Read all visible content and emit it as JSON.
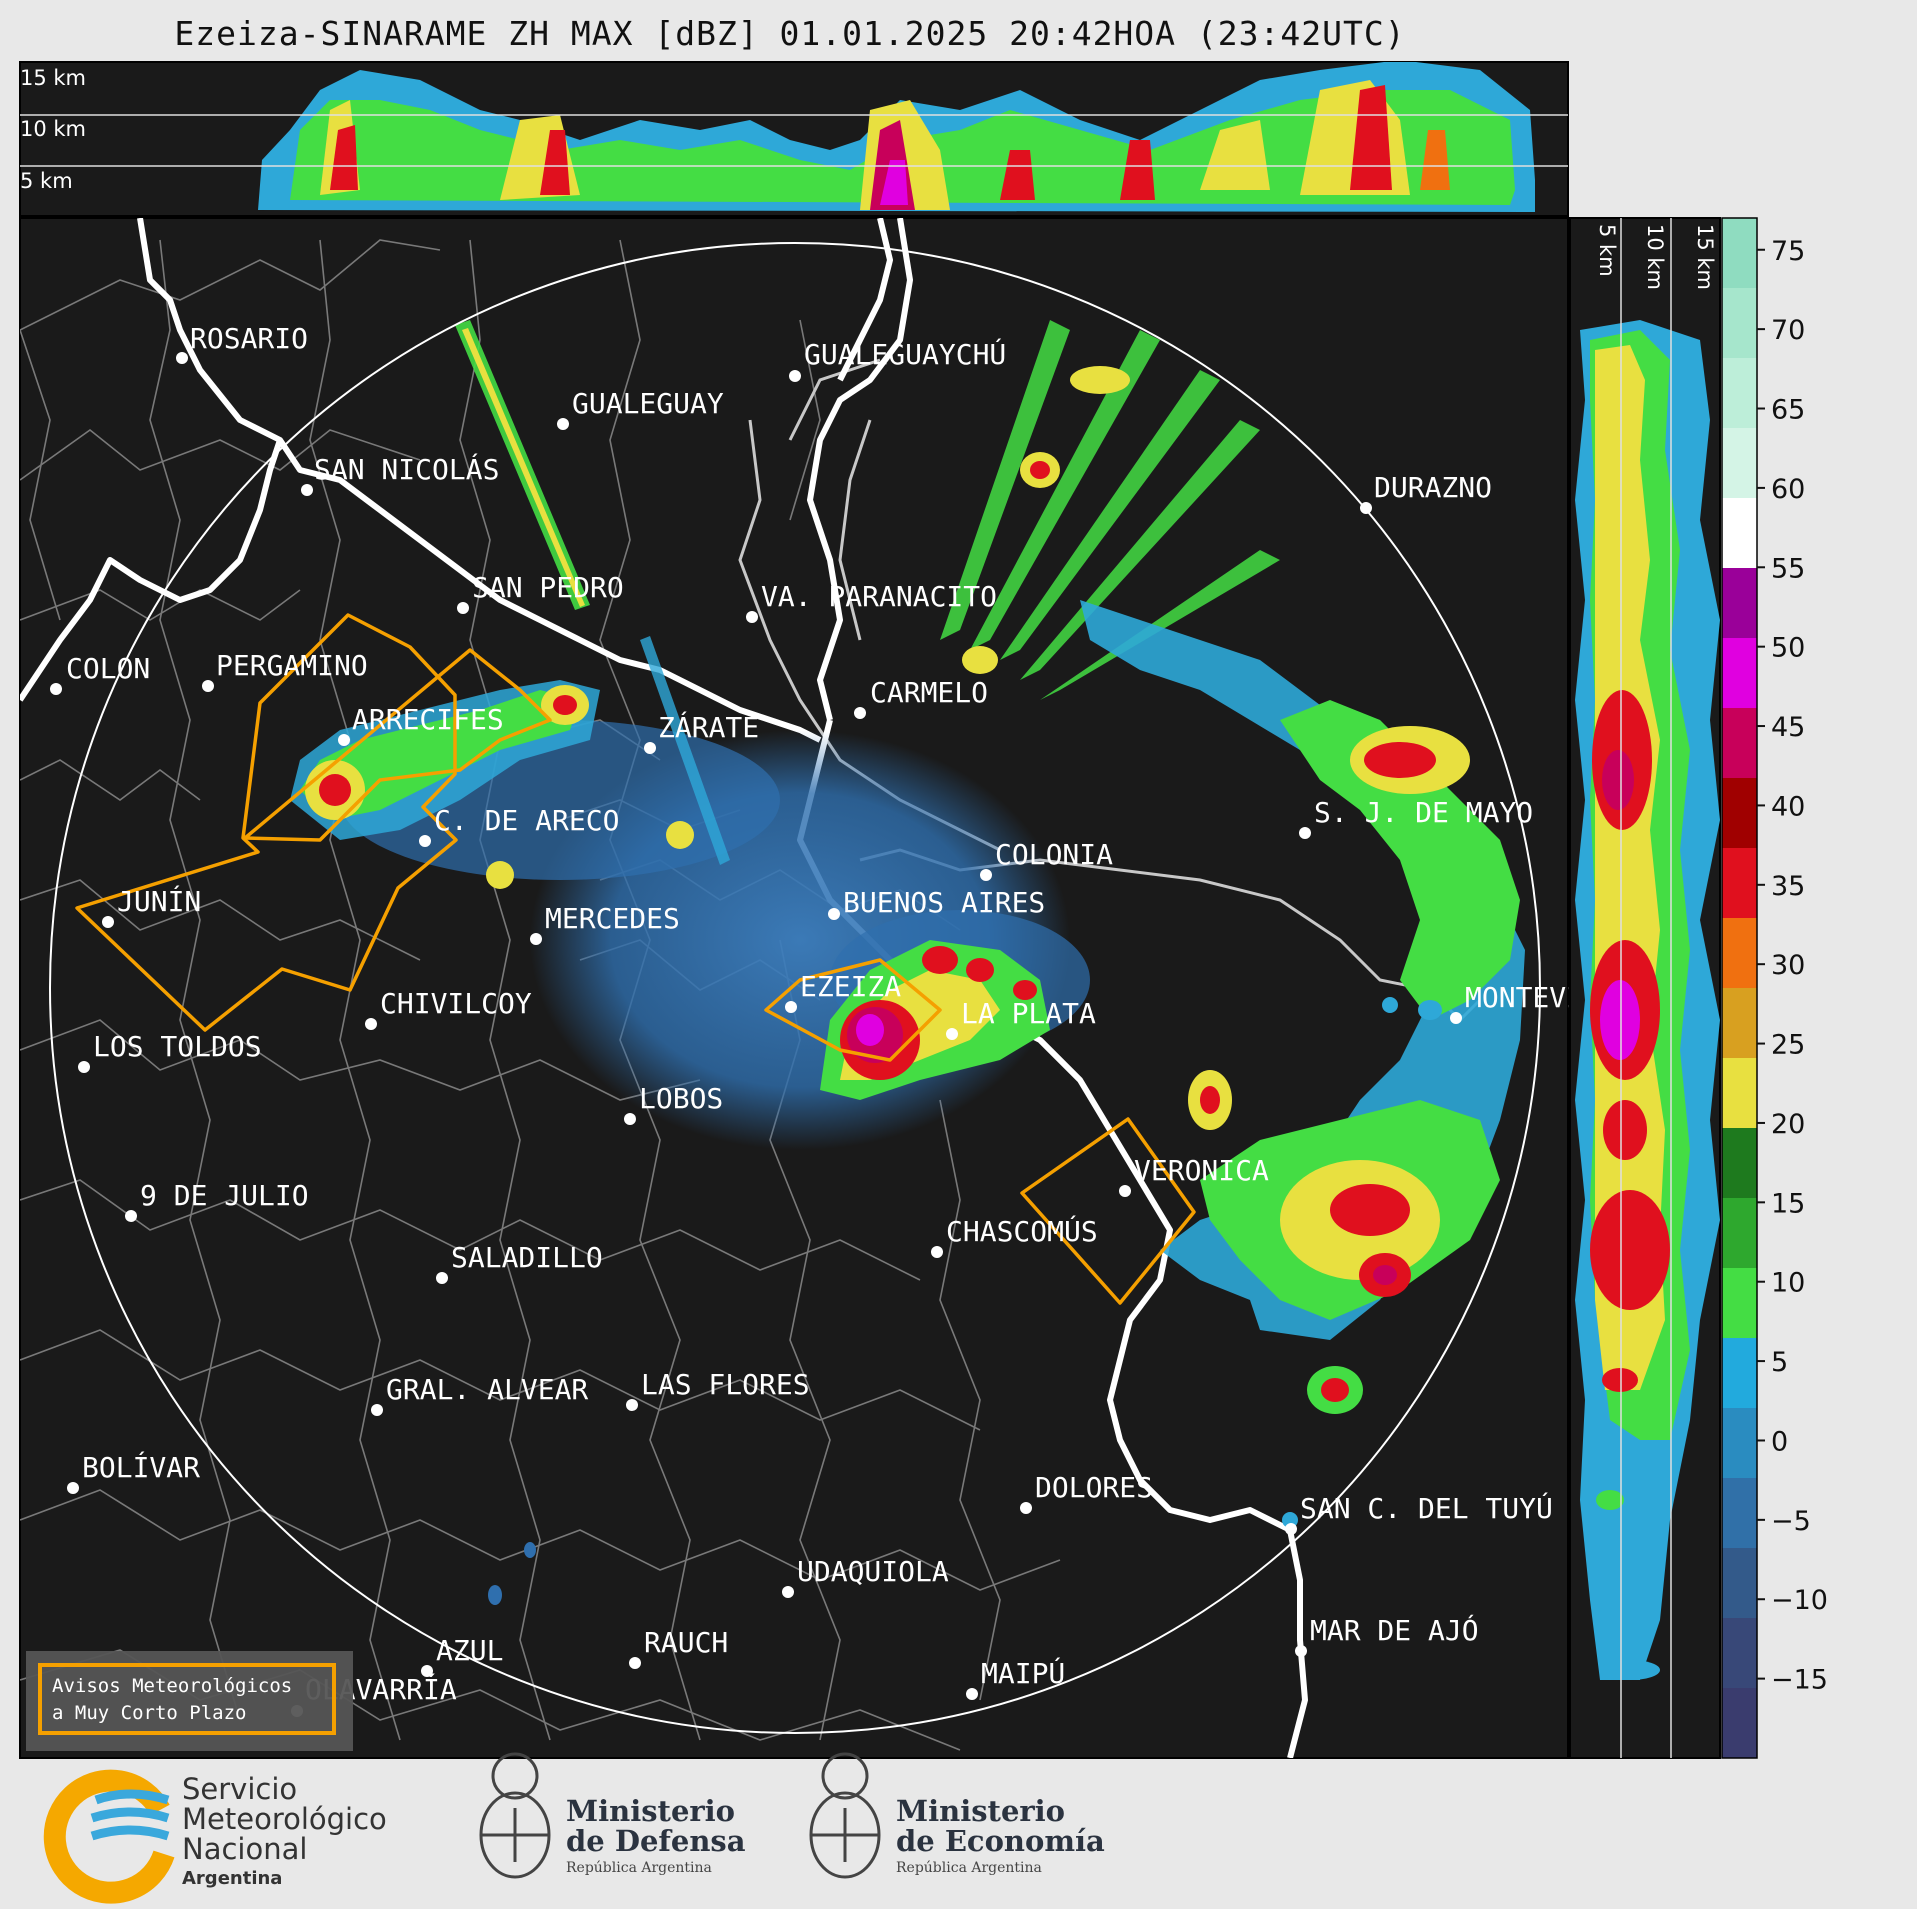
{
  "title": "Ezeiza-SINARAME ZH MAX [dBZ] 01.01.2025 20:42HOA (23:42UTC)",
  "top_panel": {
    "height_labels": [
      "15 km",
      "10 km",
      "5 km"
    ]
  },
  "side_panel": {
    "height_labels": [
      "5 km",
      "10 km",
      "15 km"
    ]
  },
  "colorbar": {
    "ticks": [
      "75",
      "70",
      "65",
      "60",
      "55",
      "50",
      "45",
      "40",
      "35",
      "30",
      "25",
      "20",
      "15",
      "10",
      "5",
      "0",
      "−5",
      "−10",
      "−15"
    ],
    "colors": [
      "#8fdcc0",
      "#a6e6cc",
      "#bdeed9",
      "#d4f4e6",
      "#ffffff",
      "#9a0099",
      "#e000e0",
      "#c8005a",
      "#a00000",
      "#e0101e",
      "#f07010",
      "#d8a020",
      "#e8e040",
      "#1e7a1e",
      "#2ea82e",
      "#44dd44",
      "#22aadd",
      "#2a8cc0",
      "#3070a8",
      "#335a8a",
      "#384878",
      "#3a3c6e"
    ],
    "unit": "dBZ"
  },
  "map": {
    "background": "#1a1a1a",
    "radar_center": "EZEIZA",
    "cities": [
      {
        "name": "ROSARIO"
      },
      {
        "name": "GUALEGUAYCHÚ"
      },
      {
        "name": "GUALEGUAY"
      },
      {
        "name": "SAN NICOLÁS"
      },
      {
        "name": "DURAZNO"
      },
      {
        "name": "SAN PEDRO"
      },
      {
        "name": "VA. PARANACITO"
      },
      {
        "name": "COLON"
      },
      {
        "name": "PERGAMINO"
      },
      {
        "name": "CARMELO"
      },
      {
        "name": "ARRECIFES"
      },
      {
        "name": "ZÁRATE"
      },
      {
        "name": "S. J. DE MAYO"
      },
      {
        "name": "C. DE ARECO"
      },
      {
        "name": "COLONIA"
      },
      {
        "name": "JUNÍN"
      },
      {
        "name": "BUENOS AIRES"
      },
      {
        "name": "MERCEDES"
      },
      {
        "name": "MONTEVIDEO"
      },
      {
        "name": "EZEIZA"
      },
      {
        "name": "CHIVILCOY"
      },
      {
        "name": "LA PLATA"
      },
      {
        "name": "LOS TOLDOS"
      },
      {
        "name": "LOBOS"
      },
      {
        "name": "VERONICA"
      },
      {
        "name": "9 DE JULIO"
      },
      {
        "name": "CHASCOMÚS"
      },
      {
        "name": "SALADILLO"
      },
      {
        "name": "GRAL. ALVEAR"
      },
      {
        "name": "LAS FLORES"
      },
      {
        "name": "BOLÍVAR"
      },
      {
        "name": "DOLORES"
      },
      {
        "name": "SAN C. DEL TUYÚ"
      },
      {
        "name": "UDAQUIOLA"
      },
      {
        "name": "AZUL"
      },
      {
        "name": "RAUCH"
      },
      {
        "name": "MAR DE AJÓ"
      },
      {
        "name": "OLAVARRÍA"
      },
      {
        "name": "MAIPÚ"
      }
    ]
  },
  "legend": {
    "line1": "Avisos Meteorológicos",
    "line2": "a Muy Corto Plazo",
    "color": "#f5a000"
  },
  "footer": {
    "snm": {
      "line1": "Servicio",
      "line2": "Meteorológico",
      "line3": "Nacional",
      "line4": "Argentina"
    },
    "defensa": {
      "line1": "Ministerio",
      "line2": "de Defensa",
      "line3": "República Argentina"
    },
    "economia": {
      "line1": "Ministerio",
      "line2": "de Economía",
      "line3": "República Argentina"
    }
  }
}
